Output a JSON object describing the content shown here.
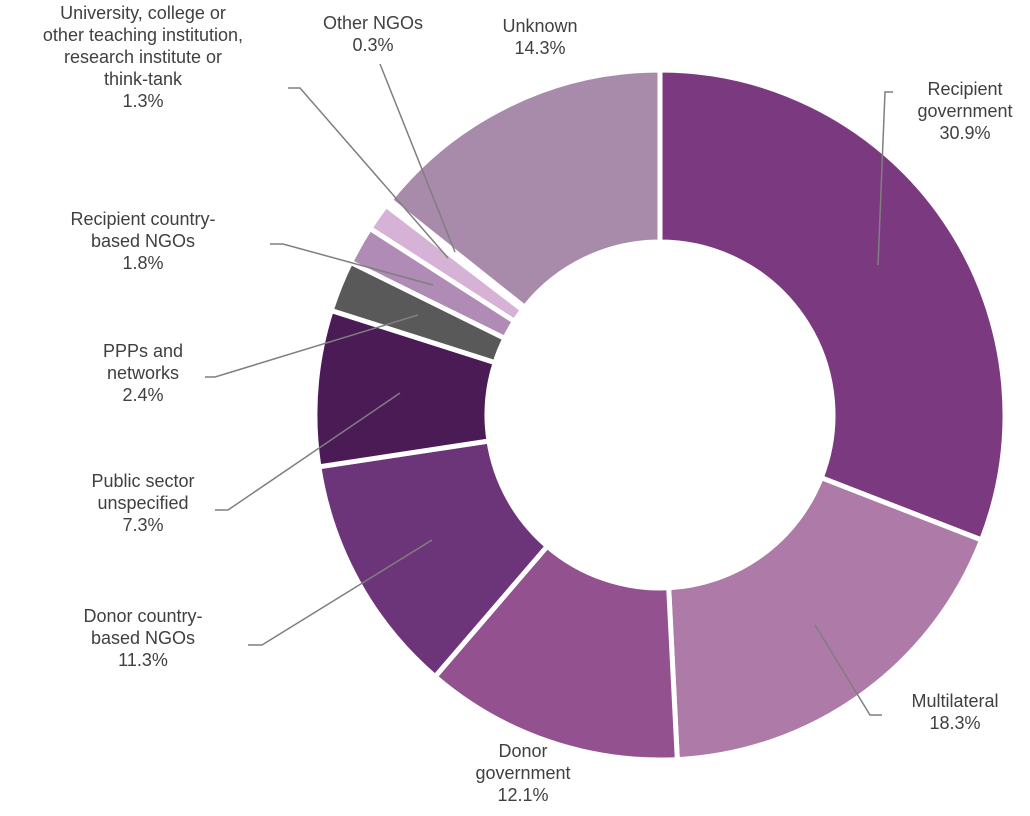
{
  "chart_data": {
    "type": "donut",
    "categories": [
      "Recipient\ngovernment",
      "Multilateral",
      "Donor\ngovernment",
      "Donor country-\nbased NGOs",
      "Public sector\nunspecified",
      "PPPs and\nnetworks",
      "Recipient country-\nbased NGOs",
      "University, college or\nother teaching institution,\nresearch institute or\nthink-tank",
      "Other NGOs",
      "Unknown"
    ],
    "values": [
      30.9,
      18.3,
      12.1,
      11.3,
      7.3,
      2.4,
      1.8,
      1.3,
      0.3,
      14.3
    ],
    "value_labels": [
      "30.9%",
      "18.3%",
      "12.1%",
      "11.3%",
      "7.3%",
      "2.4%",
      "1.8%",
      "1.3%",
      "0.3%",
      "14.3%"
    ],
    "colors": [
      "#7b3a80",
      "#ae7aa7",
      "#935190",
      "#6c3579",
      "#4b1b56",
      "#595959",
      "#b08bb6",
      "#d6b2d6",
      "#ffffff",
      "#a88bab"
    ]
  }
}
